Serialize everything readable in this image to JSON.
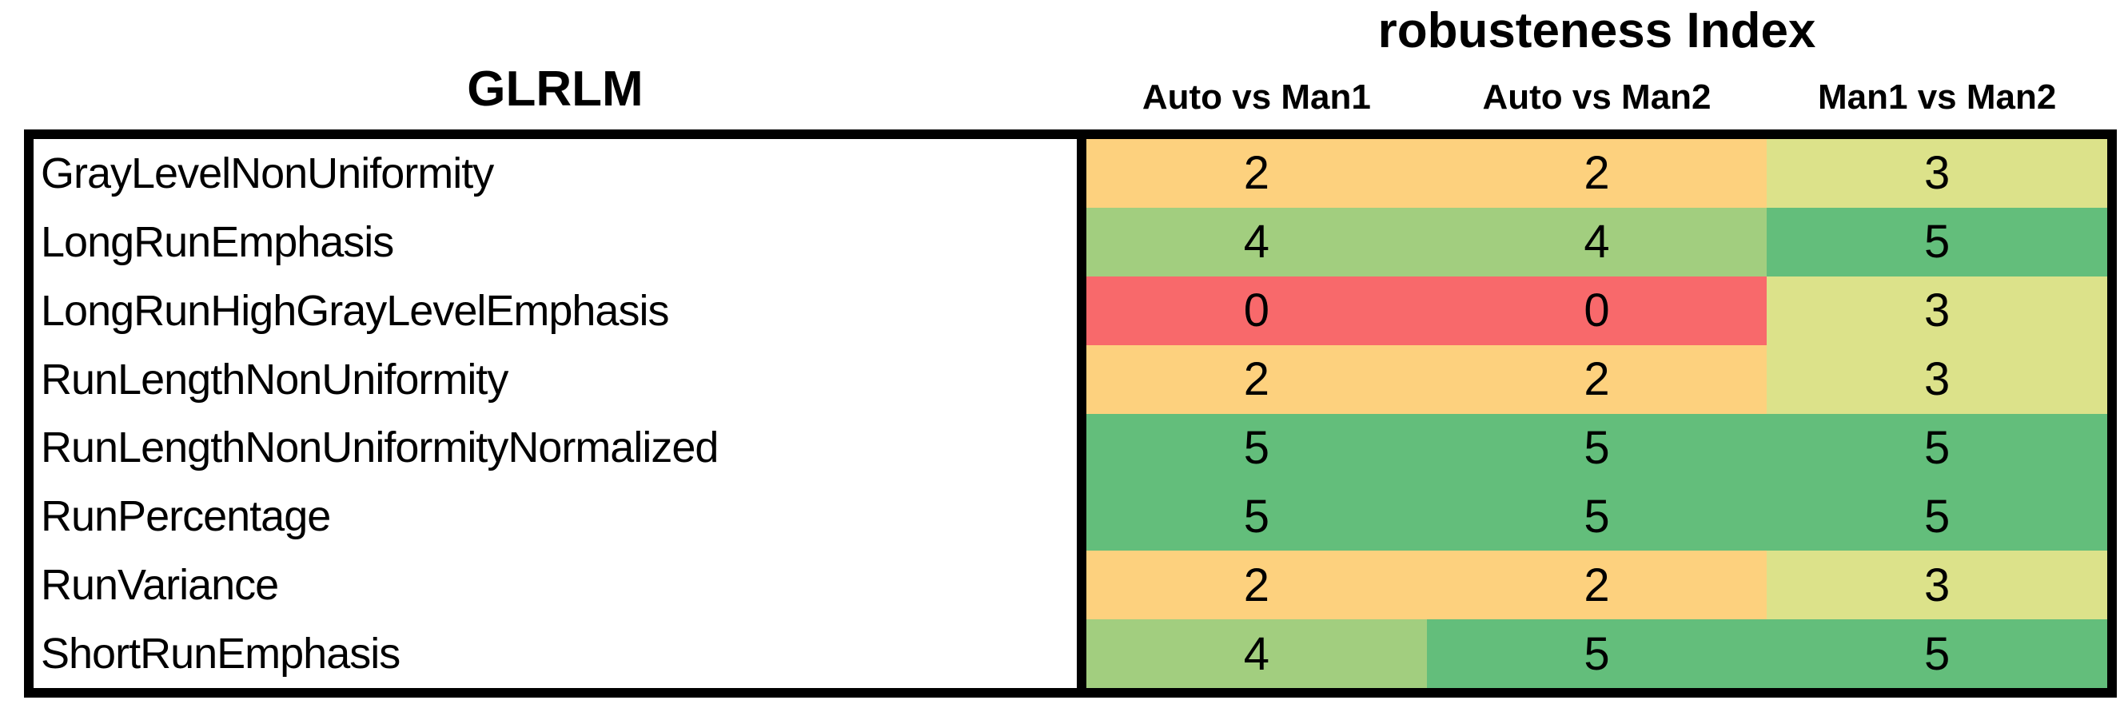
{
  "titles": {
    "left": "GLRLM",
    "right": "robusteness Index"
  },
  "columns": [
    "Auto vs Man1",
    "Auto vs Man2",
    "Man1 vs Man2"
  ],
  "rows": [
    {
      "label": "GrayLevelNonUniformity",
      "values": [
        2,
        2,
        3
      ]
    },
    {
      "label": "LongRunEmphasis",
      "values": [
        4,
        4,
        5
      ]
    },
    {
      "label": "LongRunHighGrayLevelEmphasis",
      "values": [
        0,
        0,
        3
      ]
    },
    {
      "label": "RunLengthNonUniformity",
      "values": [
        2,
        2,
        3
      ]
    },
    {
      "label": "RunLengthNonUniformityNormalized",
      "values": [
        5,
        5,
        5
      ]
    },
    {
      "label": "RunPercentage",
      "values": [
        5,
        5,
        5
      ]
    },
    {
      "label": "RunVariance",
      "values": [
        2,
        2,
        3
      ]
    },
    {
      "label": "ShortRunEmphasis",
      "values": [
        4,
        5,
        5
      ]
    }
  ],
  "value_colors": {
    "0": "#F8696B",
    "2": "#FDD17E",
    "3": "#DCE28A",
    "4": "#A2CE7F",
    "5": "#63BE7B"
  },
  "chart_data": {
    "type": "heatmap",
    "title": "robusteness Index",
    "row_group_label": "GLRLM",
    "columns": [
      "Auto vs Man1",
      "Auto vs Man2",
      "Man1 vs Man2"
    ],
    "rows": [
      "GrayLevelNonUniformity",
      "LongRunEmphasis",
      "LongRunHighGrayLevelEmphasis",
      "RunLengthNonUniformity",
      "RunLengthNonUniformityNormalized",
      "RunPercentage",
      "RunVariance",
      "ShortRunEmphasis"
    ],
    "values": [
      [
        2,
        2,
        3
      ],
      [
        4,
        4,
        5
      ],
      [
        0,
        0,
        3
      ],
      [
        2,
        2,
        3
      ],
      [
        5,
        5,
        5
      ],
      [
        5,
        5,
        5
      ],
      [
        2,
        2,
        3
      ],
      [
        4,
        5,
        5
      ]
    ],
    "value_range": [
      0,
      5
    ],
    "colormap": {
      "0": "#F8696B",
      "2": "#FDD17E",
      "3": "#DCE28A",
      "4": "#A2CE7F",
      "5": "#63BE7B"
    },
    "legend_position": "none",
    "grid": false
  }
}
